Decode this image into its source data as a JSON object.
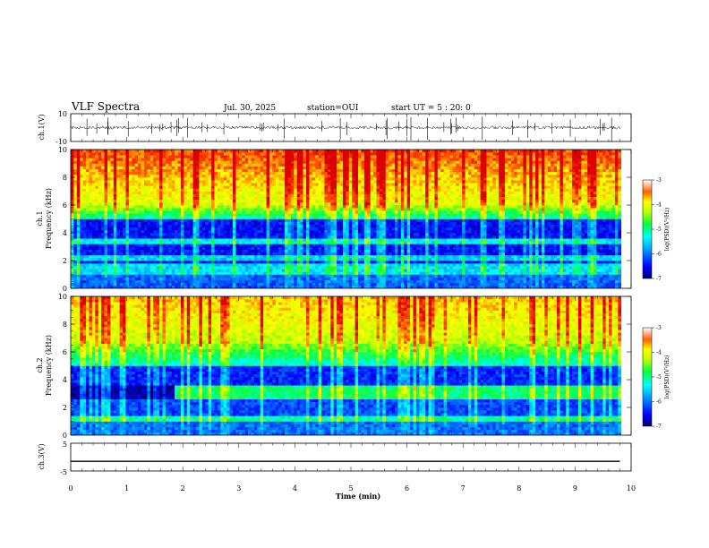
{
  "header": {
    "title": "VLF Spectra",
    "date": "Jul. 30, 2025",
    "station": "station=OUI",
    "start": "start UT =  5 : 20: 0"
  },
  "chart_data": [
    {
      "type": "line",
      "panel": "ch1-waveform",
      "ylabel": "ch.1(V)",
      "ylim": [
        -10,
        10
      ],
      "yticks": [
        "10",
        "-10"
      ],
      "x_range_min": [
        0,
        9.8
      ],
      "description_level": "noise waveform around 0 V with occasional spikes"
    },
    {
      "type": "heatmap",
      "panel": "ch1-spectrogram",
      "ylabel": "ch.1\nFrequency (kHz)",
      "ylabel_lines": [
        "ch.1",
        "Frequency (kHz)"
      ],
      "ylim": [
        0,
        10
      ],
      "yticks": [
        "0",
        "2",
        "4",
        "6",
        "8",
        "10"
      ],
      "colorbar": {
        "label": "log(PSD)(V²/Hz)",
        "range": [
          -7,
          -3
        ],
        "ticks": [
          "-3",
          "-4",
          "-5",
          "-6",
          "-7"
        ]
      }
    },
    {
      "type": "heatmap",
      "panel": "ch2-spectrogram",
      "ylabel_lines": [
        "ch.2",
        "Frequency (kHz)"
      ],
      "ylim": [
        0,
        10
      ],
      "yticks": [
        "0",
        "2",
        "4",
        "6",
        "8",
        "10"
      ],
      "colorbar": {
        "label": "log(PSD)(V²/Hz)",
        "range": [
          -7,
          -3
        ],
        "ticks": [
          "-3",
          "-4",
          "-5",
          "-6",
          "-7"
        ]
      }
    },
    {
      "type": "line",
      "panel": "ch3-waveform",
      "ylabel": "ch.3(V)",
      "ylim": [
        -5,
        5
      ],
      "yticks": [
        "5",
        "-5"
      ],
      "series": [
        {
          "values": [
            -1.5,
            -1.5
          ]
        }
      ],
      "x": [
        0,
        9.8
      ]
    }
  ],
  "xaxis": {
    "label": "Time (min)",
    "ticks": [
      "0",
      "1",
      "2",
      "3",
      "4",
      "5",
      "6",
      "7",
      "8",
      "9",
      "10"
    ],
    "range": [
      0,
      10
    ]
  },
  "colors": {
    "colormap": [
      "#00008b",
      "#0000ff",
      "#0080ff",
      "#00e0ff",
      "#00ff80",
      "#80ff00",
      "#ffff00",
      "#ffa000",
      "#ff2000",
      "#c80000"
    ]
  }
}
